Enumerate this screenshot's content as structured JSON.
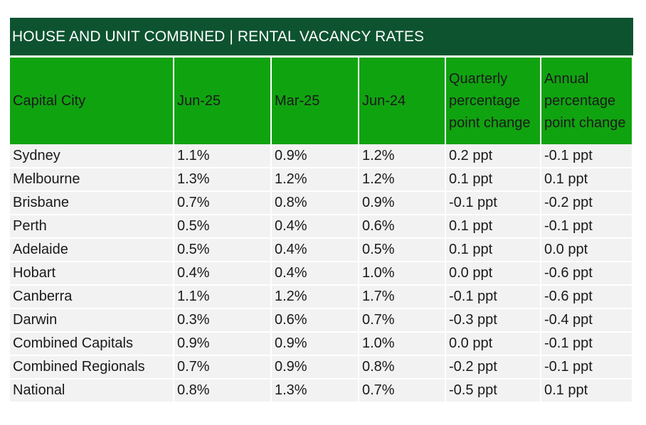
{
  "table": {
    "title": "HOUSE AND UNIT COMBINED | RENTAL VACANCY RATES",
    "headers": [
      "Capital City",
      "Jun-25",
      "Mar-25",
      "Jun-24",
      "Quarterly percentage point change",
      "Annual percentage point change"
    ],
    "rows": [
      [
        "Sydney",
        "1.1%",
        "0.9%",
        "1.2%",
        "0.2 ppt",
        "-0.1 ppt"
      ],
      [
        "Melbourne",
        "1.3%",
        "1.2%",
        "1.2%",
        "0.1 ppt",
        "0.1 ppt"
      ],
      [
        "Brisbane",
        "0.7%",
        "0.8%",
        "0.9%",
        "-0.1 ppt",
        "-0.2 ppt"
      ],
      [
        "Perth",
        "0.5%",
        "0.4%",
        "0.6%",
        "0.1 ppt",
        "-0.1 ppt"
      ],
      [
        "Adelaide",
        "0.5%",
        "0.4%",
        "0.5%",
        "0.1 ppt",
        "0.0 ppt"
      ],
      [
        "Hobart",
        "0.4%",
        "0.4%",
        "1.0%",
        "0.0 ppt",
        "-0.6 ppt"
      ],
      [
        "Canberra",
        "1.1%",
        "1.2%",
        "1.7%",
        "-0.1 ppt",
        "-0.6 ppt"
      ],
      [
        "Darwin",
        "0.3%",
        "0.6%",
        "0.7%",
        "-0.3 ppt",
        "-0.4 ppt"
      ],
      [
        "Combined Capitals",
        "0.9%",
        "0.9%",
        "1.0%",
        "0.0 ppt",
        "-0.1 ppt"
      ],
      [
        "Combined Regionals",
        "0.7%",
        "0.9%",
        "0.8%",
        "-0.2 ppt",
        "-0.1 ppt"
      ],
      [
        "National",
        "0.8%",
        "1.3%",
        "0.7%",
        "-0.5 ppt",
        "0.1 ppt"
      ]
    ]
  },
  "colors": {
    "title_background": "#0e5330",
    "header_background": "#10a310",
    "row_background": "#f2f2f2"
  }
}
